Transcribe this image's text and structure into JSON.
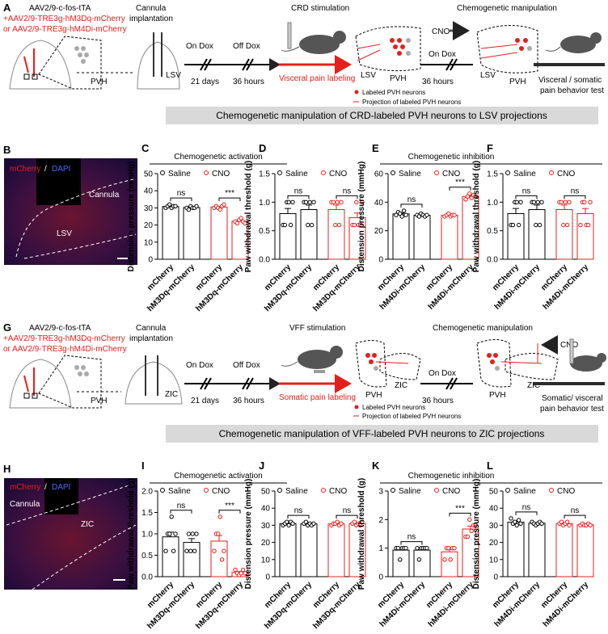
{
  "figure": {
    "panel_A": {
      "label": "A",
      "virus": [
        "AAV2/9-c-fos-tTA",
        "+AAV2/9-TRE3g-hM3Dq-mCherry",
        "or AAV2/9-TRE3g-hM4Di-mCherry"
      ],
      "cannula": [
        "Cannula",
        "implantation"
      ],
      "regions": [
        "PVH",
        "LSV"
      ],
      "on_dox": "On Dox",
      "days": "21 days",
      "off_dox": "Off Dox",
      "hours": "36 hours",
      "stimulation": "CRD  stimulation",
      "labeling": "Visceral pain labeling",
      "label_regions": [
        "LSV",
        "PVH"
      ],
      "legend": [
        "Labeled PVH neurons",
        "Projection of labeled PVH neurons"
      ],
      "manipulation": "Chemogenetic manipulation",
      "cno": "CNO",
      "on_dox_2": "On Dox",
      "hours_2": "36 hours",
      "manip_regions": [
        "LSV",
        "PVH"
      ],
      "test": [
        "Visceral / somatic",
        "pain behavior test"
      ]
    },
    "banner_1": "Chemogenetic manipulation of CRD-labeled PVH neurons to LSV projections",
    "panel_B": {
      "label": "B",
      "stain": [
        "mCherry",
        "/",
        "DAPI"
      ],
      "cannula": "Cannula",
      "region": "LSV"
    },
    "groups_1": [
      "Chemogenetic activation",
      "Chemogenetic inhibition"
    ],
    "panel_G": {
      "label": "G",
      "virus": [
        "AAV2/9-c-fos-tTA",
        "+AAV2/9-TRE3g-hM3Dq-mCherry",
        "or AAV2/9-TRE3g-hM4Di-mCherry"
      ],
      "cannula": [
        "Cannula",
        "implantation"
      ],
      "regions": [
        "PVH",
        "ZIC"
      ],
      "on_dox": "On Dox",
      "days": "21 days",
      "off_dox": "Off Dox",
      "hours": "36 hours",
      "stimulation": "VFF  stimulation",
      "labeling": "Somatic pain labeling",
      "label_regions": [
        "PVH",
        "ZIC"
      ],
      "legend": [
        "Labeled PVH neurons",
        "Projection of labeled PVH neurons"
      ],
      "manipulation": "Chemogenetic manipulation",
      "cno": "CNO",
      "on_dox_2": "On Dox",
      "hours_2": "36 hours",
      "manip_regions": [
        "PVH",
        "ZIC"
      ],
      "test": [
        "Somatic/ visceral",
        "pain behavior test"
      ]
    },
    "banner_2": "Chemogenetic manipulation of VFF-labeled PVH neurons to ZIC projections",
    "panel_H": {
      "label": "H",
      "stain": [
        "mCherry",
        "/",
        "DAPI"
      ],
      "cannula": "Cannula",
      "region": "ZIC"
    },
    "groups_2": [
      "Chemogenetic activation",
      "Chemogenetic inhibition"
    ]
  },
  "chart_data": [
    {
      "type": "bar",
      "panel": "C",
      "ylabel": "Distension pressure (mmHg)",
      "ylim": [
        0,
        50
      ],
      "yticks": [
        0,
        10,
        20,
        30,
        40,
        50
      ],
      "categories": [
        "mCherry",
        "hM3Dq-mCherry",
        "mCherry",
        "hM3Dq-mCherry"
      ],
      "significance": [
        "ns",
        "***"
      ],
      "series": [
        {
          "name": "Saline",
          "color": "#000000",
          "values": [
            30.8,
            30.2,
            null,
            null
          ],
          "errors": [
            0.4,
            0.4,
            null,
            null
          ],
          "points": [
            [
              30,
              31,
              32,
              30,
              31,
              31
            ],
            [
              30,
              29,
              31,
              30,
              30,
              31
            ],
            null,
            null
          ]
        },
        {
          "name": "CNO",
          "color": "#e3201b",
          "values": [
            null,
            null,
            30.5,
            22.2
          ],
          "errors": [
            null,
            null,
            0.4,
            0.5
          ],
          "points": [
            null,
            null,
            [
              30,
              31,
              30,
              29,
              31,
              32
            ],
            [
              22,
              21,
              23,
              24,
              22,
              21
            ]
          ]
        }
      ]
    },
    {
      "type": "bar",
      "panel": "D",
      "ylabel": "Paw withdrawal threshold (g)",
      "ylim": [
        0,
        1.5
      ],
      "yticks": [
        {
          "value": 0,
          "label": "0.0"
        },
        0.5,
        {
          "value": 1,
          "label": "1.0"
        },
        1.5
      ],
      "categories": [
        "mCherry",
        "hM3Dq-mCherry",
        "mCherry",
        "hM3Dq-mCherry"
      ],
      "significance": [
        "ns",
        "ns"
      ],
      "series": [
        {
          "name": "Saline",
          "color": "#000000",
          "values": [
            0.8,
            0.87,
            null,
            null
          ],
          "errors": [
            0.09,
            0.08,
            null,
            null
          ],
          "points": [
            [
              0.6,
              0.6,
              1.0,
              1.0,
              0.6,
              1.0
            ],
            [
              1.0,
              1.0,
              0.6,
              1.0,
              0.6,
              1.0
            ],
            null,
            null
          ]
        },
        {
          "name": "CNO",
          "color": "#e3201b",
          "values": [
            null,
            null,
            0.87,
            0.73
          ],
          "errors": [
            null,
            null,
            0.08,
            0.08
          ],
          "points": [
            null,
            null,
            [
              1.0,
              1.0,
              0.6,
              1.0,
              0.6,
              1.0
            ],
            [
              0.6,
              0.6,
              1.0,
              0.6,
              0.6,
              1.0
            ]
          ]
        }
      ]
    },
    {
      "type": "bar",
      "panel": "E",
      "ylabel": "Distension pressure (mmHg)",
      "ylim": [
        0,
        60
      ],
      "yticks": [
        0,
        20,
        40,
        60
      ],
      "categories": [
        "mCherry",
        "hM4Di-mCherry",
        "mCherry",
        "hM4Di-mCherry"
      ],
      "significance": [
        "ns",
        "***"
      ],
      "series": [
        {
          "name": "Saline",
          "color": "#000000",
          "values": [
            31.8,
            30.8,
            null,
            null
          ],
          "errors": [
            0.6,
            0.3,
            null,
            null
          ],
          "points": [
            [
              31,
              33,
              32,
              30,
              34,
              31
            ],
            [
              31,
              30,
              32,
              31,
              30,
              31
            ],
            null,
            null
          ]
        },
        {
          "name": "CNO",
          "color": "#e3201b",
          "values": [
            null,
            null,
            30.8,
            44
          ],
          "errors": [
            null,
            null,
            0.3,
            0.6
          ],
          "points": [
            null,
            null,
            [
              30,
              31,
              32,
              30,
              31,
              31
            ],
            [
              42,
              44,
              46,
              43,
              45,
              44
            ]
          ]
        }
      ]
    },
    {
      "type": "bar",
      "panel": "F",
      "ylabel": "Paw withdrawal threshold (g)",
      "ylim": [
        0,
        1.5
      ],
      "yticks": [
        {
          "value": 0,
          "label": "0.0"
        },
        0.5,
        {
          "value": 1,
          "label": "1.0"
        },
        1.5
      ],
      "categories": [
        "mCherry",
        "hM4Di-mCherry",
        "mCherry",
        "hM4Di-mCherry"
      ],
      "significance": [
        "ns",
        "ns"
      ],
      "series": [
        {
          "name": "Saline",
          "color": "#000000",
          "values": [
            0.8,
            0.87,
            null,
            null
          ],
          "errors": [
            0.09,
            0.08,
            null,
            null
          ],
          "points": [
            [
              0.6,
              0.6,
              1.0,
              1.0,
              0.6,
              1.0
            ],
            [
              1.0,
              1.0,
              0.6,
              1.0,
              0.6,
              1.0
            ],
            null,
            null
          ]
        },
        {
          "name": "CNO",
          "color": "#e3201b",
          "values": [
            null,
            null,
            0.87,
            0.8
          ],
          "errors": [
            null,
            null,
            0.08,
            0.09
          ],
          "points": [
            null,
            null,
            [
              1.0,
              1.0,
              0.6,
              1.0,
              0.6,
              1.0
            ],
            [
              0.6,
              1.0,
              1.0,
              0.6,
              0.6,
              1.0
            ]
          ]
        }
      ]
    },
    {
      "type": "bar",
      "panel": "I",
      "ylabel": "Paw withdrawal threshold (g)",
      "ylim": [
        0,
        2
      ],
      "yticks": [
        {
          "value": 0,
          "label": "0.0"
        },
        0.5,
        {
          "value": 1,
          "label": "1.0"
        },
        1.5,
        {
          "value": 2,
          "label": "2.0"
        }
      ],
      "categories": [
        "mCherry",
        "hM3Dq-mCherry",
        "mCherry",
        "hM3Dq-mCherry"
      ],
      "significance": [
        "ns",
        "***"
      ],
      "series": [
        {
          "name": "Saline",
          "color": "#000000",
          "values": [
            0.93,
            0.8,
            null,
            null
          ],
          "errors": [
            0.11,
            0.09,
            null,
            null
          ],
          "points": [
            [
              0.6,
              1.0,
              1.0,
              1.4,
              0.6,
              1.0
            ],
            [
              0.6,
              1.0,
              0.6,
              1.0,
              0.6,
              1.0
            ],
            null,
            null
          ]
        },
        {
          "name": "CNO",
          "color": "#e3201b",
          "values": [
            null,
            null,
            0.83,
            0.1
          ],
          "errors": [
            null,
            null,
            0.13,
            0.02
          ],
          "points": [
            null,
            null,
            [
              0.6,
              1.0,
              1.0,
              1.4,
              0.4,
              0.6
            ],
            [
              0.16,
              0.08,
              0.04,
              0.08,
              0.16,
              0.08
            ]
          ]
        }
      ]
    },
    {
      "type": "bar",
      "panel": "J",
      "ylabel": "Distension pressure (mmHg)",
      "ylim": [
        0,
        50
      ],
      "yticks": [
        0,
        10,
        20,
        30,
        40,
        50
      ],
      "categories": [
        "mCherry",
        "hM3Dq-mCherry",
        "mCherry",
        "hM3Dq-mCherry"
      ],
      "significance": [
        "ns",
        "ns"
      ],
      "series": [
        {
          "name": "Saline",
          "color": "#000000",
          "values": [
            31,
            30.8,
            null,
            null
          ],
          "errors": [
            0.4,
            0.3,
            null,
            null
          ],
          "points": [
            [
              30,
              31,
              32,
              30,
              32,
              31
            ],
            [
              31,
              32,
              30,
              31,
              30,
              31
            ],
            null,
            null
          ]
        },
        {
          "name": "CNO",
          "color": "#e3201b",
          "values": [
            null,
            null,
            30.8,
            31
          ],
          "errors": [
            null,
            null,
            0.3,
            0.4
          ],
          "points": [
            null,
            null,
            [
              30,
              31,
              31,
              32,
              30,
              31
            ],
            [
              31,
              32,
              30,
              31,
              30,
              32
            ]
          ]
        }
      ]
    },
    {
      "type": "bar",
      "panel": "K",
      "ylabel": "Paw withdrawal threshold (g)",
      "ylim": [
        0,
        3
      ],
      "yticks": [
        0,
        1,
        2,
        3
      ],
      "categories": [
        "mCherry",
        "hM4Di-mCherry",
        "mCherry",
        "hM4Di-mCherry"
      ],
      "significance": [
        "ns",
        "***"
      ],
      "series": [
        {
          "name": "Saline",
          "color": "#000000",
          "values": [
            0.93,
            0.93,
            null,
            null
          ],
          "errors": [
            0.07,
            0.07,
            null,
            null
          ],
          "points": [
            [
              1.0,
              1.0,
              0.6,
              1.0,
              1.0,
              1.0
            ],
            [
              1.0,
              0.6,
              1.0,
              1.0,
              1.0,
              1.0
            ],
            null,
            null
          ]
        },
        {
          "name": "CNO",
          "color": "#e3201b",
          "values": [
            null,
            null,
            0.87,
            1.67
          ],
          "errors": [
            null,
            null,
            0.08,
            0.1
          ],
          "points": [
            null,
            null,
            [
              0.6,
              1.0,
              1.0,
              0.6,
              1.0,
              1.0
            ],
            [
              1.4,
              1.4,
              2.0,
              1.6,
              1.8,
              1.8
            ]
          ]
        }
      ]
    },
    {
      "type": "bar",
      "panel": "L",
      "ylabel": "Distension pressure (mmHg)",
      "ylim": [
        0,
        50
      ],
      "yticks": [
        0,
        10,
        20,
        30,
        40,
        50
      ],
      "categories": [
        "mCherry",
        "hM4Di-mCherry",
        "mCherry",
        "hM4Di-mCherry"
      ],
      "significance": [
        "ns",
        "ns"
      ],
      "series": [
        {
          "name": "Saline",
          "color": "#000000",
          "values": [
            31.8,
            31.2,
            null,
            null
          ],
          "errors": [
            0.6,
            0.3,
            null,
            null
          ],
          "points": [
            [
              34,
              31,
              32,
              30,
              33,
              31
            ],
            [
              32,
              31,
              30,
              31,
              32,
              31
            ],
            null,
            null
          ]
        },
        {
          "name": "CNO",
          "color": "#e3201b",
          "values": [
            null,
            null,
            31,
            30.3
          ],
          "errors": [
            null,
            null,
            0.4,
            0.2
          ],
          "points": [
            null,
            null,
            [
              31,
              32,
              30,
              31,
              32,
              30
            ],
            [
              30,
              31,
              30,
              30,
              31,
              30
            ]
          ]
        }
      ]
    }
  ]
}
